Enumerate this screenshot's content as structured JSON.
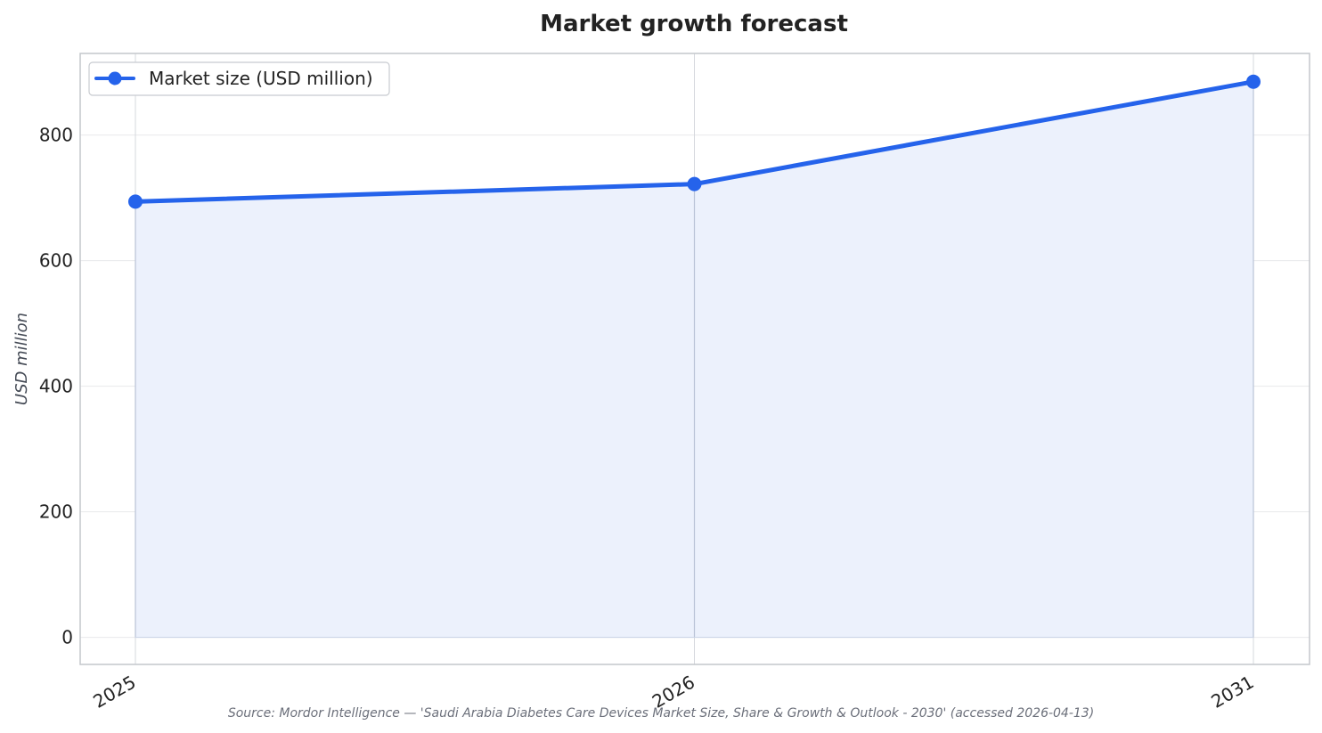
{
  "chart_data": {
    "type": "line",
    "title": "Market growth forecast",
    "xlabel": "",
    "ylabel": "USD million",
    "categories": [
      "2025",
      "2026",
      "2031"
    ],
    "series": [
      {
        "name": "Market size (USD million)",
        "values": [
          694,
          722,
          885
        ],
        "color": "#2563eb",
        "fill": "#ecf1fc",
        "marker": "circle",
        "area_fill": true
      }
    ],
    "ylim": [
      -43,
      930
    ],
    "yticks": [
      0,
      200,
      400,
      600,
      800
    ],
    "grid": true,
    "legend_position": "top-left",
    "source": "Source: Mordor Intelligence — 'Saudi Arabia Diabetes Care Devices Market Size, Share & Growth & Outlook - 2030' (accessed 2026-04-13)"
  }
}
